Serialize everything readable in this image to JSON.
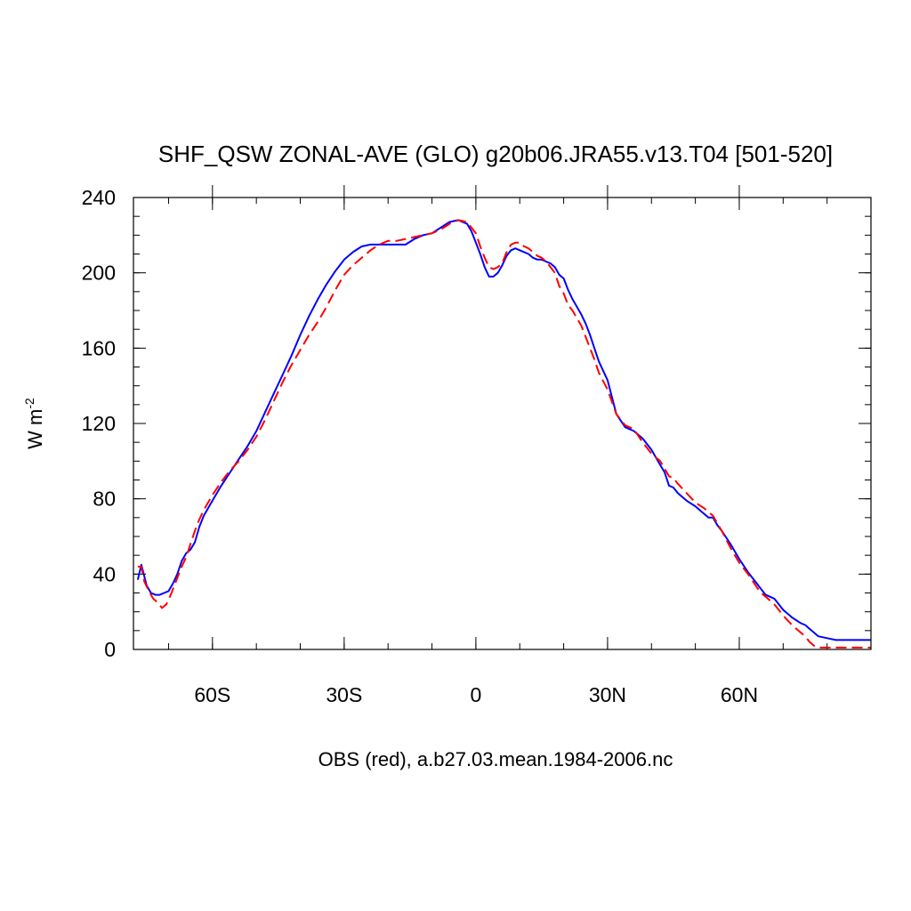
{
  "chart_data": {
    "type": "line",
    "title": "SHF_QSW ZONAL-AVE (GLO) g20b06.JRA55.v13.T04 [501-520]",
    "xlabel": "OBS (red), a.b27.03.mean.1984-2006.nc",
    "ylabel_main": "W m",
    "ylabel_sup": "-2",
    "xlim": [
      -78,
      90
    ],
    "ylim": [
      0,
      240
    ],
    "x_ticks": [
      {
        "value": -60,
        "label": "60S"
      },
      {
        "value": -30,
        "label": "30S"
      },
      {
        "value": 0,
        "label": "0"
      },
      {
        "value": 30,
        "label": "30N"
      },
      {
        "value": 60,
        "label": "60N"
      }
    ],
    "x_minor_step": 10,
    "y_ticks": [
      {
        "value": 0,
        "label": "0"
      },
      {
        "value": 40,
        "label": "40"
      },
      {
        "value": 80,
        "label": "80"
      },
      {
        "value": 120,
        "label": "120"
      },
      {
        "value": 160,
        "label": "160"
      },
      {
        "value": 200,
        "label": "200"
      },
      {
        "value": 240,
        "label": "240"
      }
    ],
    "y_minor_step": 10,
    "series": [
      {
        "color": "#0000ff",
        "dash": "solid",
        "x": [
          -77,
          -76.2,
          -75,
          -74,
          -73,
          -72,
          -71,
          -70,
          -69,
          -68,
          -67,
          -66,
          -65,
          -64,
          -63,
          -62,
          -60,
          -58,
          -56,
          -54,
          -52,
          -50,
          -48,
          -46,
          -44,
          -42,
          -40,
          -38,
          -36,
          -34,
          -32,
          -30,
          -28,
          -26,
          -24,
          -22,
          -20,
          -18,
          -16,
          -14,
          -12,
          -10,
          -8,
          -6,
          -4,
          -2,
          -1,
          0,
          1,
          2,
          3,
          4,
          5,
          6,
          7,
          8,
          9,
          10,
          11,
          12,
          13,
          14,
          15,
          16,
          17,
          18,
          19,
          20,
          21,
          22,
          23,
          24,
          25,
          26,
          27,
          28,
          30,
          32,
          34,
          36,
          38,
          40,
          41,
          42,
          43,
          44,
          45,
          46,
          48,
          50,
          52,
          53,
          54,
          55,
          56,
          58,
          60,
          62,
          64,
          65,
          66,
          68,
          70,
          72,
          74,
          75,
          76,
          77,
          78,
          80,
          82,
          84,
          86,
          88,
          90
        ],
        "y": [
          37,
          45,
          34,
          30,
          29,
          29,
          30,
          31,
          35,
          40,
          47,
          51,
          53,
          57,
          65,
          71,
          79,
          87,
          94,
          101,
          108,
          116,
          126,
          136,
          146,
          156,
          167,
          177,
          186,
          194,
          201,
          207,
          211,
          214,
          215,
          215,
          215,
          215,
          215,
          218,
          220,
          221,
          224,
          227,
          228,
          226,
          222,
          216,
          210,
          203,
          198,
          198,
          200,
          204,
          209,
          212,
          213,
          212,
          211,
          210,
          208,
          207,
          207,
          206,
          205,
          203,
          199,
          197,
          191,
          186,
          182,
          178,
          173,
          167,
          160,
          153,
          143,
          125,
          118,
          116,
          112,
          106,
          102,
          98,
          94,
          87,
          86,
          83,
          79,
          76,
          72,
          70,
          70,
          66,
          63,
          56,
          48,
          41,
          35,
          32,
          29,
          27,
          21,
          17,
          14,
          13,
          11,
          9,
          7,
          6,
          5,
          5,
          5,
          5,
          5
        ]
      },
      {
        "color": "#ff0000",
        "dash": "dashed",
        "x": [
          -77,
          -76.2,
          -75.5,
          -74.5,
          -73.5,
          -72.5,
          -71.5,
          -70.5,
          -69.5,
          -68,
          -67,
          -66,
          -65,
          -64,
          -63,
          -62,
          -60,
          -58,
          -56,
          -54,
          -52,
          -50,
          -48,
          -46,
          -44,
          -42,
          -40,
          -38,
          -36,
          -34,
          -32,
          -30,
          -28,
          -26,
          -24,
          -22,
          -20,
          -18,
          -16,
          -14,
          -12,
          -10,
          -8,
          -6,
          -4,
          -2,
          -1,
          0,
          1,
          2,
          3,
          4,
          5,
          6,
          7,
          8,
          9,
          10,
          11,
          12,
          13,
          14,
          15,
          16,
          17,
          18,
          19,
          20,
          21,
          22,
          23,
          24,
          25,
          26,
          27,
          28,
          30,
          32,
          34,
          36,
          38,
          40,
          41,
          42,
          43,
          44,
          45,
          46,
          48,
          50,
          52,
          53,
          54,
          55,
          56,
          58,
          60,
          62,
          64,
          65,
          66,
          68,
          70,
          72,
          74,
          75,
          76,
          77,
          78,
          79,
          80,
          81,
          82,
          84,
          86,
          88,
          90
        ],
        "y": [
          44,
          44,
          36,
          31,
          27,
          25,
          22,
          24,
          29,
          38,
          44,
          49,
          56,
          63,
          69,
          74,
          82,
          89,
          95,
          100,
          106,
          113,
          122,
          132,
          142,
          151,
          159,
          167,
          174,
          182,
          191,
          199,
          204,
          208,
          212,
          215,
          217,
          217,
          218,
          219,
          220,
          221,
          223,
          226,
          228,
          227,
          224,
          221,
          214,
          208,
          203,
          202,
          203,
          205,
          211,
          215,
          216,
          216,
          214,
          213,
          211,
          209,
          208,
          206,
          203,
          200,
          193,
          189,
          183,
          180,
          176,
          172,
          166,
          160,
          154,
          147,
          138,
          125,
          119,
          117,
          110,
          104,
          102,
          100,
          96,
          92,
          91,
          88,
          83,
          78,
          75,
          73,
          71,
          67,
          63,
          54,
          46,
          40,
          33,
          30,
          28,
          24,
          18,
          13,
          9,
          7,
          4,
          2,
          1,
          1,
          1,
          1,
          1,
          1,
          1,
          1,
          1
        ]
      }
    ]
  }
}
